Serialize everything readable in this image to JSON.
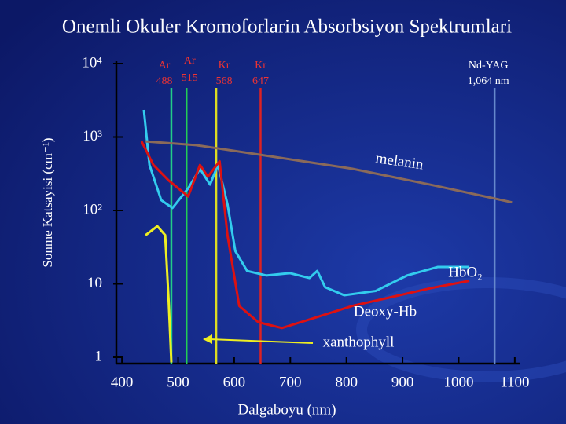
{
  "chart_data": {
    "type": "line",
    "title": "Onemli Okuler Kromoforlarin Absorbsiyon Spektrumlari",
    "x_label": "Dalgaboyu (nm)",
    "y_label": "Sonme Katsayisi (cm⁻¹)",
    "log_scale_y": true,
    "xlim": [
      390,
      1110
    ],
    "xticks": [
      400,
      500,
      600,
      700,
      800,
      900,
      1000,
      1100
    ],
    "ylim": [
      1,
      10000
    ],
    "yticks": [
      1,
      10,
      {
        "value": 100,
        "label": "10²"
      },
      {
        "value": 1000,
        "label": "10³"
      },
      {
        "value": 10000,
        "label": "10⁴"
      }
    ],
    "series": [
      {
        "name": "HbO₂",
        "color": "#33ccee",
        "x": [
          439,
          449,
          470,
          490,
          518,
          539,
          557,
          571,
          588,
          602,
          623,
          657,
          699,
          734,
          748,
          762,
          796,
          852,
          908,
          963,
          1019
        ],
        "values": [
          2340,
          417,
          138,
          108,
          200,
          370,
          225,
          417,
          122,
          28,
          15,
          13,
          14,
          12,
          15,
          9,
          7,
          8,
          13,
          17,
          17
        ]
      },
      {
        "name": "Deoxy-Hb",
        "color": "#dd1111",
        "x": [
          435,
          456,
          483,
          518,
          539,
          553,
          574,
          588,
          609,
          643,
          685,
          741,
          810,
          880,
          949,
          1019
        ],
        "values": [
          870,
          417,
          257,
          155,
          417,
          288,
          468,
          46,
          5,
          3,
          2.5,
          3.4,
          5,
          6.6,
          8.7,
          11
        ]
      },
      {
        "name": "melanin",
        "color": "#8a6a5a",
        "x": [
          442,
          532,
          671,
          810,
          949,
          1095
        ],
        "values": [
          870,
          775,
          537,
          370,
          225,
          129
        ]
      },
      {
        "name": "xanthophyll",
        "color": "#eeee22",
        "x": [
          442,
          463,
          477,
          483,
          488
        ],
        "values": [
          46,
          61,
          46,
          6.3,
          0.85
        ]
      }
    ],
    "lasers": {
      "names": [
        "Ar",
        "Ar",
        "Kr",
        "Kr",
        "Nd-YAG"
      ],
      "values": [
        488,
        515,
        568,
        647,
        1064
      ],
      "value_labels": [
        "488",
        "515",
        "568",
        "647",
        "1,064 nm"
      ],
      "colors": [
        "#22cc88",
        "#22cc55",
        "#dddd22",
        "#dd2222",
        "#6688cc"
      ]
    }
  }
}
